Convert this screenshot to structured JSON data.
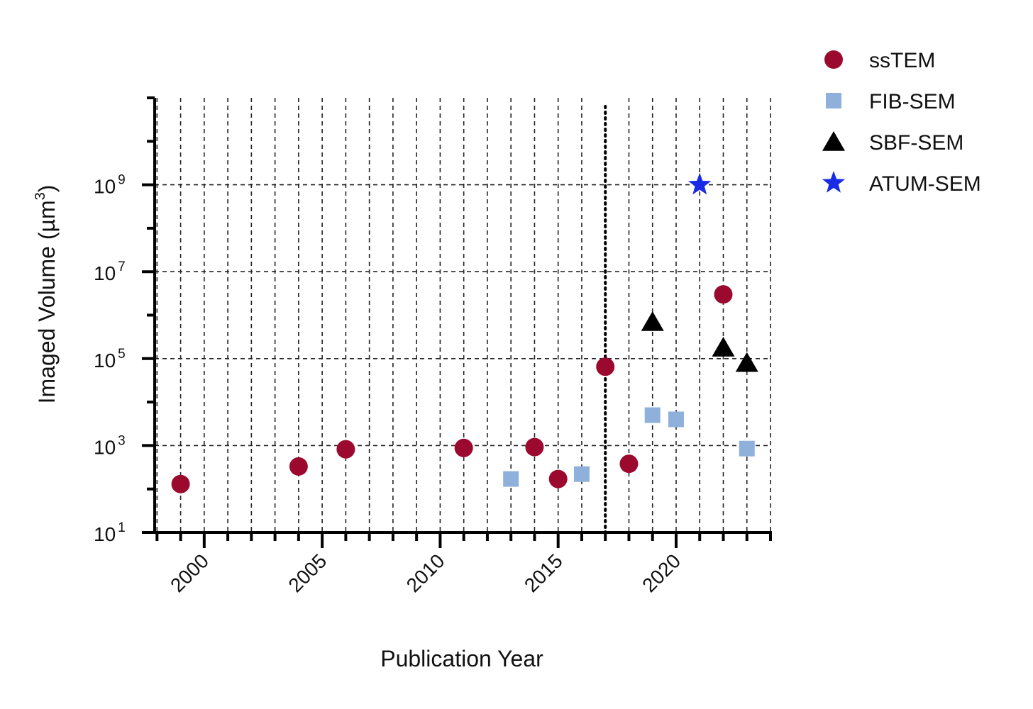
{
  "chart_data": {
    "type": "scatter",
    "xlabel": "Publication Year",
    "ylabel": {
      "main": "Imaged Volume  (µm",
      "exp": "3",
      "close": ")"
    },
    "x_scale": "linear",
    "y_scale": "log",
    "xlim": [
      1997.9,
      2024.0
    ],
    "ylim": [
      10,
      100000000000
    ],
    "x_ticks": [
      2000,
      2005,
      2010,
      2015,
      2020
    ],
    "x_tick_labels": [
      "2000",
      "2005",
      "2010",
      "2015",
      "2020"
    ],
    "y_major_exponents": [
      1,
      3,
      5,
      7,
      9
    ],
    "y_tick_base": "10",
    "grid": true,
    "vertical_marker_x": 2017,
    "legend_position": "top-right",
    "series": [
      {
        "name": "ssTEM",
        "marker": "circle",
        "color": "#9B0A2E",
        "points": [
          {
            "x": 1999,
            "y": 130
          },
          {
            "x": 2004,
            "y": 330
          },
          {
            "x": 2006,
            "y": 820
          },
          {
            "x": 2011,
            "y": 880
          },
          {
            "x": 2014,
            "y": 920
          },
          {
            "x": 2015,
            "y": 170
          },
          {
            "x": 2017,
            "y": 65000
          },
          {
            "x": 2018,
            "y": 380
          },
          {
            "x": 2022,
            "y": 3000000
          }
        ]
      },
      {
        "name": "FIB-SEM",
        "marker": "square",
        "color": "#8EB0DA",
        "points": [
          {
            "x": 2013,
            "y": 170
          },
          {
            "x": 2016,
            "y": 220
          },
          {
            "x": 2019,
            "y": 5000
          },
          {
            "x": 2020,
            "y": 4000
          },
          {
            "x": 2023,
            "y": 850
          }
        ]
      },
      {
        "name": "SBF-SEM",
        "marker": "triangle",
        "color": "#000000",
        "points": [
          {
            "x": 2019,
            "y": 700000
          },
          {
            "x": 2022,
            "y": 180000
          },
          {
            "x": 2023,
            "y": 80000
          }
        ]
      },
      {
        "name": "ATUM-SEM",
        "marker": "star",
        "color": "#1A2BE6",
        "points": [
          {
            "x": 2021,
            "y": 1000000000
          }
        ]
      }
    ]
  }
}
